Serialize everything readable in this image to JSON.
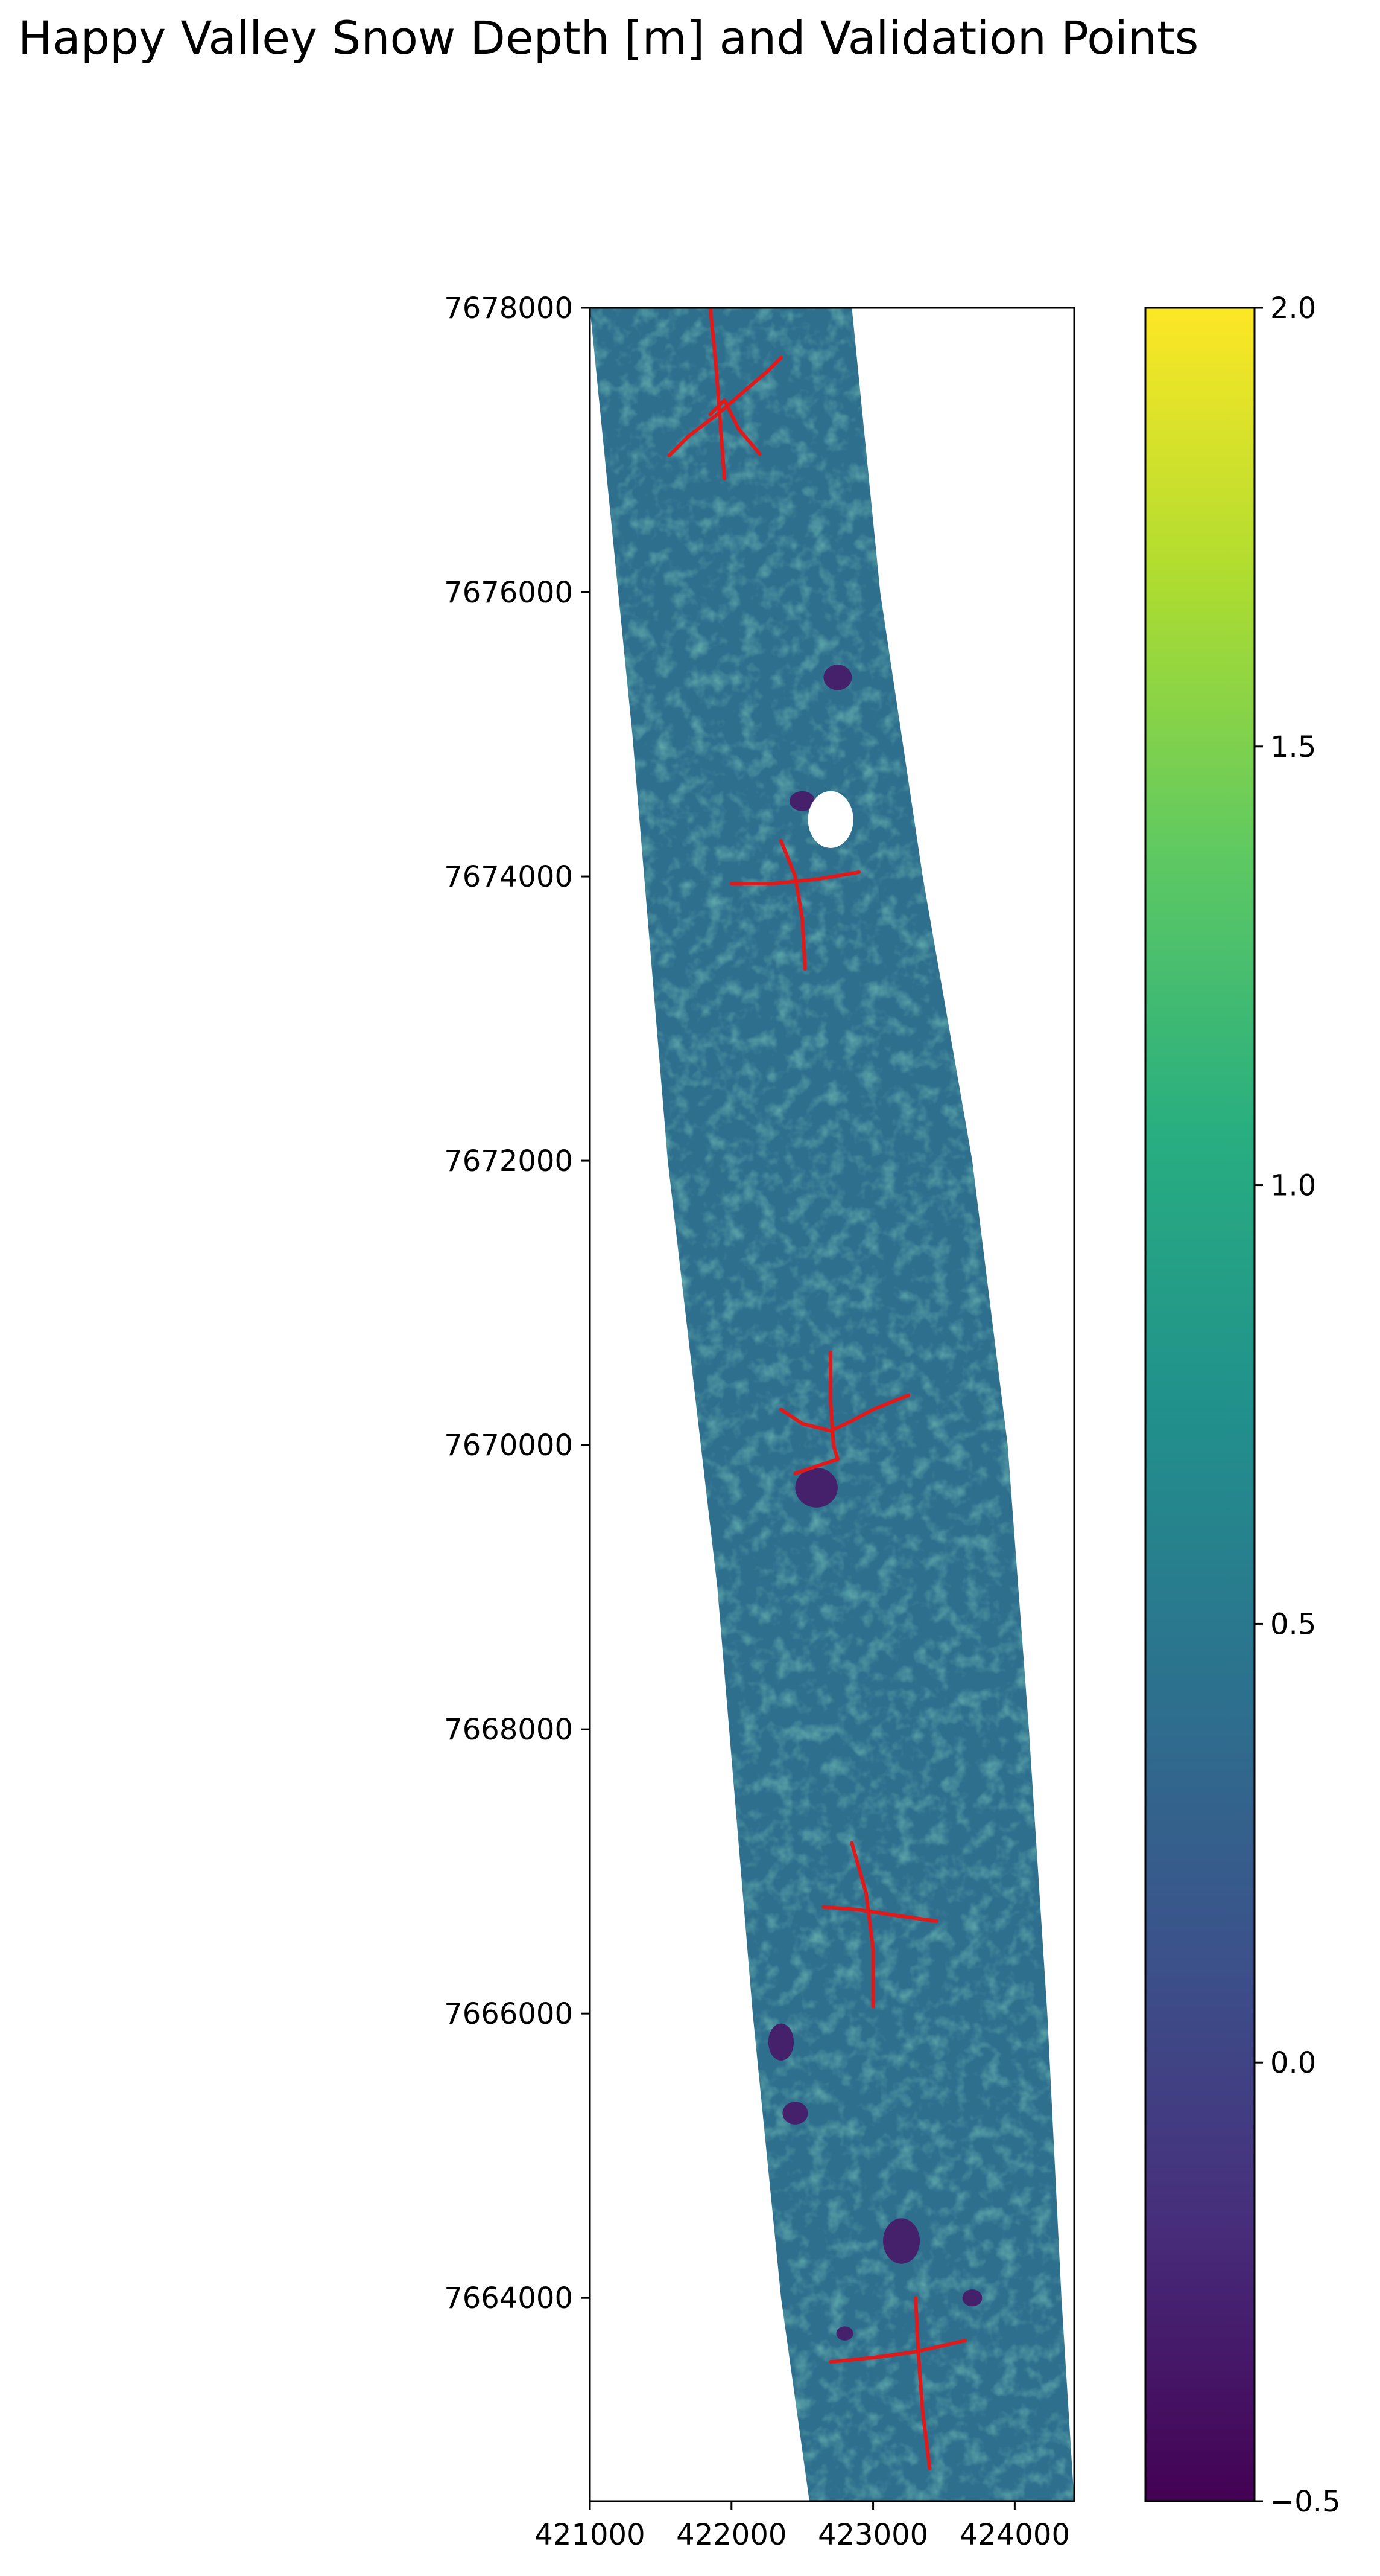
{
  "chart_data": {
    "type": "heatmap",
    "title": "Happy Valley Snow Depth [m] and Validation Points",
    "xlabel": "",
    "ylabel": "",
    "x_ticks": [
      421000,
      422000,
      423000,
      424000
    ],
    "y_ticks": [
      7664000,
      7666000,
      7668000,
      7670000,
      7672000,
      7674000,
      7676000,
      7678000
    ],
    "xlim": [
      421000,
      424420
    ],
    "ylim": [
      7662570,
      7678000
    ],
    "colorbar": {
      "colormap": "viridis",
      "range": [
        -0.5,
        2.0
      ],
      "ticks": [
        "2.0",
        "1.5",
        "1.0",
        "0.5",
        "0.0",
        "−0.5"
      ],
      "tick_values": [
        2.0,
        1.5,
        1.0,
        0.5,
        0.0,
        -0.5
      ]
    },
    "swath_left_edge": [
      [
        421000,
        7678000
      ],
      [
        421300,
        7675000
      ],
      [
        421550,
        7672000
      ],
      [
        421900,
        7669000
      ],
      [
        422150,
        7666000
      ],
      [
        422350,
        7664000
      ],
      [
        422550,
        7662570
      ]
    ],
    "swath_right_edge": [
      [
        422850,
        7678000
      ],
      [
        423050,
        7676000
      ],
      [
        423350,
        7674000
      ],
      [
        423700,
        7672000
      ],
      [
        423950,
        7670000
      ],
      [
        424100,
        7668000
      ],
      [
        424230,
        7666000
      ],
      [
        424330,
        7664000
      ],
      [
        424420,
        7662570
      ]
    ],
    "snow_depth_typical_m": 0.4,
    "low_depth_patches": [
      {
        "x": 422750,
        "y": 7675400,
        "rx": 100,
        "ry": 90
      },
      {
        "x": 422500,
        "y": 7674530,
        "rx": 90,
        "ry": 70
      },
      {
        "x": 422600,
        "y": 7669700,
        "rx": 150,
        "ry": 140
      },
      {
        "x": 422350,
        "y": 7665800,
        "rx": 90,
        "ry": 130
      },
      {
        "x": 422450,
        "y": 7665300,
        "rx": 90,
        "ry": 80
      },
      {
        "x": 423200,
        "y": 7664400,
        "rx": 130,
        "ry": 160
      },
      {
        "x": 423700,
        "y": 7664000,
        "rx": 70,
        "ry": 60
      },
      {
        "x": 422800,
        "y": 7663750,
        "rx": 60,
        "ry": 50
      }
    ],
    "no_data_patches": [
      {
        "x": 422700,
        "y": 7674400,
        "rx": 160,
        "ry": 200
      }
    ],
    "validation_color": "#e01a1a",
    "validation_lines": [
      [
        [
          421850,
          7678000
        ],
        [
          421890,
          7677600
        ],
        [
          421920,
          7677200
        ],
        [
          421950,
          7676800
        ]
      ],
      [
        [
          421560,
          7676960
        ],
        [
          421700,
          7677100
        ],
        [
          421900,
          7677250
        ],
        [
          422050,
          7677380
        ],
        [
          422250,
          7677550
        ],
        [
          422350,
          7677650
        ]
      ],
      [
        [
          421850,
          7677250
        ],
        [
          421950,
          7677350
        ],
        [
          422050,
          7677150
        ],
        [
          422200,
          7676970
        ]
      ],
      [
        [
          422000,
          7673950
        ],
        [
          422300,
          7673950
        ],
        [
          422600,
          7673980
        ],
        [
          422900,
          7674030
        ]
      ],
      [
        [
          422350,
          7674250
        ],
        [
          422450,
          7674000
        ],
        [
          422500,
          7673700
        ],
        [
          422520,
          7673350
        ]
      ],
      [
        [
          422350,
          7670250
        ],
        [
          422500,
          7670150
        ],
        [
          422700,
          7670100
        ]
      ],
      [
        [
          422700,
          7670100
        ],
        [
          422850,
          7670170
        ],
        [
          423000,
          7670250
        ],
        [
          423250,
          7670350
        ]
      ],
      [
        [
          422700,
          7670650
        ],
        [
          422700,
          7670300
        ],
        [
          422720,
          7670000
        ],
        [
          422750,
          7669900
        ]
      ],
      [
        [
          422450,
          7669800
        ],
        [
          422600,
          7669850
        ],
        [
          422750,
          7669900
        ]
      ],
      [
        [
          422650,
          7666750
        ],
        [
          422900,
          7666730
        ],
        [
          423100,
          7666700
        ],
        [
          423450,
          7666650
        ]
      ],
      [
        [
          422850,
          7667200
        ],
        [
          422950,
          7666850
        ],
        [
          423000,
          7666450
        ],
        [
          423000,
          7666050
        ]
      ],
      [
        [
          422700,
          7663550
        ],
        [
          423000,
          7663580
        ],
        [
          423300,
          7663620
        ],
        [
          423650,
          7663700
        ]
      ],
      [
        [
          423300,
          7664000
        ],
        [
          423320,
          7663600
        ],
        [
          423350,
          7663200
        ],
        [
          423400,
          7662800
        ]
      ]
    ]
  }
}
